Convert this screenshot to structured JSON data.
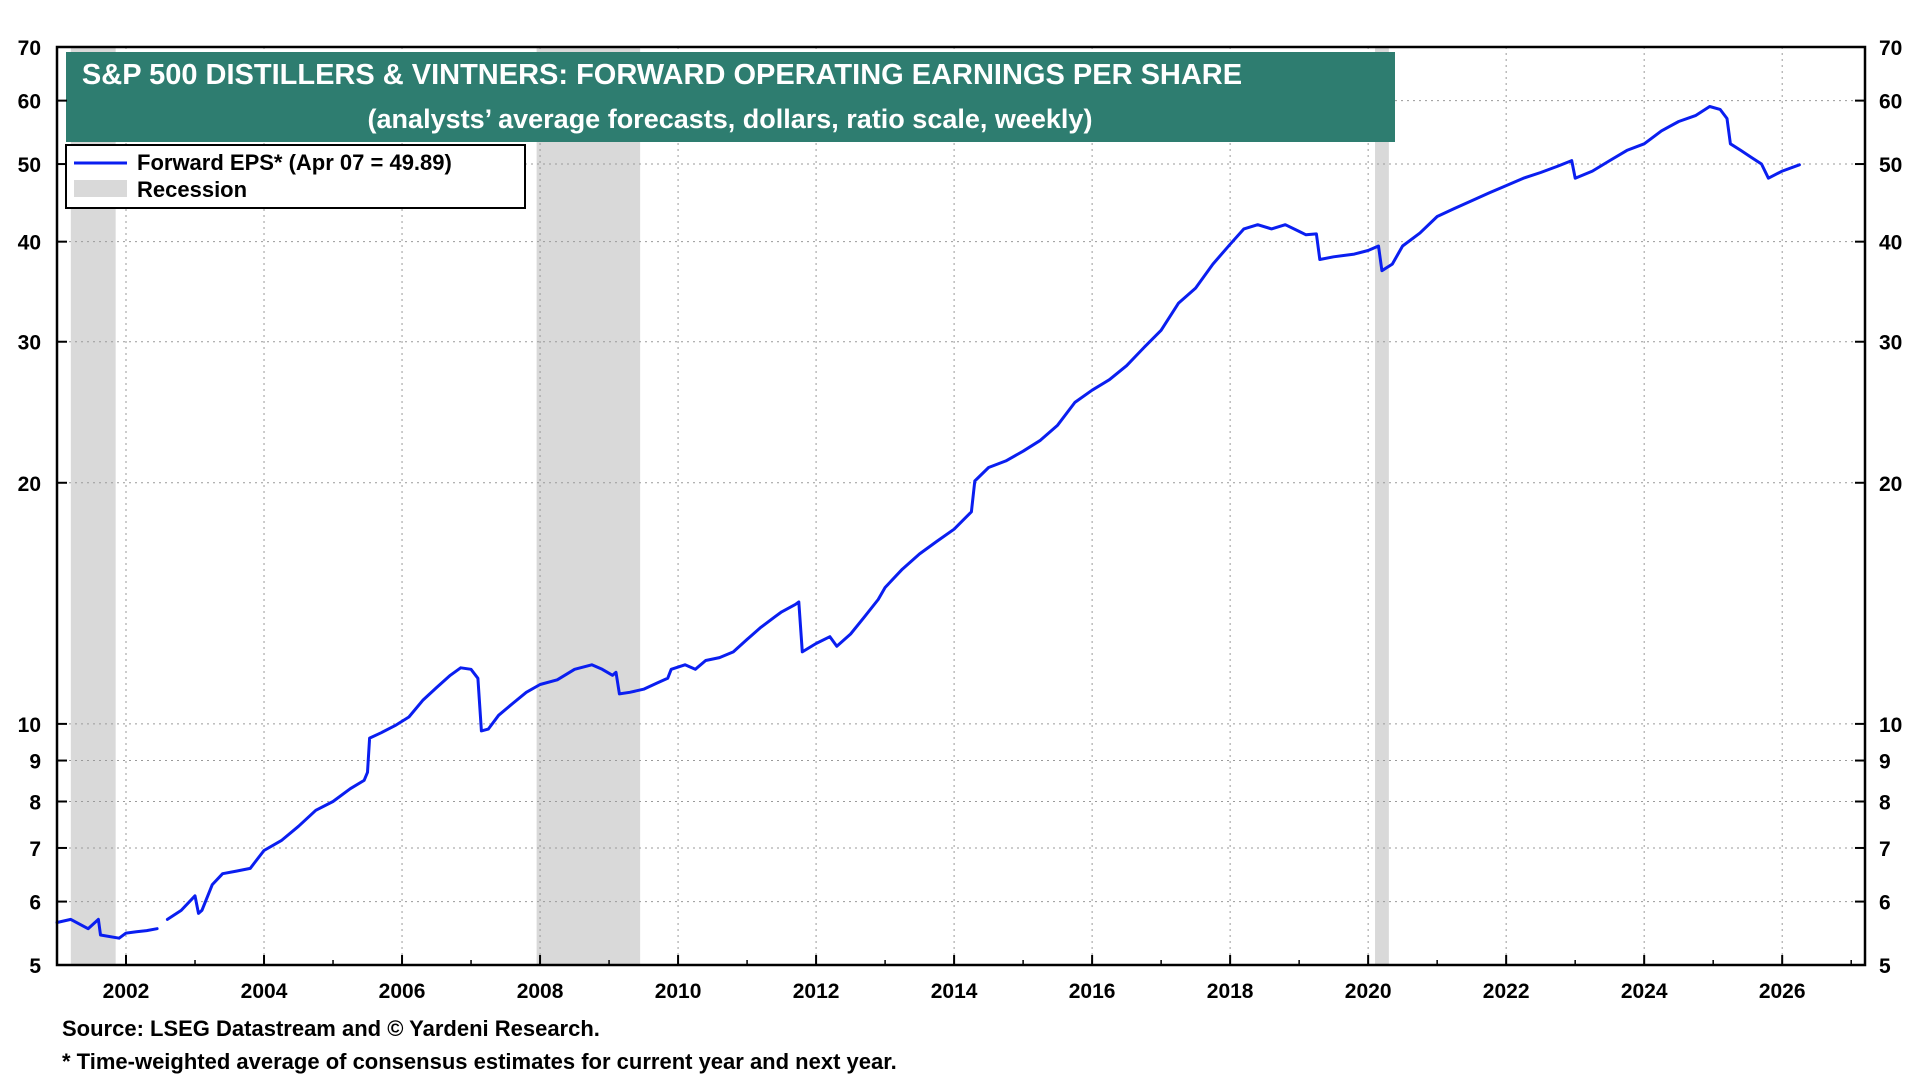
{
  "colors": {
    "line": "#0a1ef0",
    "recession": "#d9d9d9",
    "title_bg": "#2e7d70",
    "grid": "#9a9a9a"
  },
  "footnotes": {
    "source": "Source: LSEG Datastream and © Yardeni Research.",
    "note": "* Time-weighted average of consensus estimates for current year and next year."
  },
  "chart_data": {
    "type": "line",
    "title": "S&P 500 DISTILLERS & VINTNERS: FORWARD OPERATING EARNINGS PER SHARE",
    "subtitle": "(analysts’ average forecasts, dollars, ratio scale, weekly)",
    "xlabel": "",
    "ylabel": "",
    "y_scale": "log",
    "xlim": [
      2001.0,
      2027.2
    ],
    "ylim": [
      5,
      70
    ],
    "x_ticks": [
      2002,
      2004,
      2006,
      2008,
      2010,
      2012,
      2014,
      2016,
      2018,
      2020,
      2022,
      2024,
      2026
    ],
    "x_tick_labels": [
      "2002",
      "2004",
      "2006",
      "2008",
      "2010",
      "2012",
      "2014",
      "2016",
      "2018",
      "2020",
      "2022",
      "2024",
      "2026"
    ],
    "y_ticks": [
      5,
      6,
      7,
      8,
      9,
      10,
      20,
      30,
      40,
      50,
      60,
      70
    ],
    "y_tick_labels": [
      "5",
      "6",
      "7",
      "8",
      "9",
      "10",
      "20",
      "30",
      "40",
      "50",
      "60",
      "70"
    ],
    "grid": true,
    "legend_position": "top-left",
    "legend": [
      {
        "label": "Forward EPS* (Apr 07 = 49.89)",
        "kind": "line"
      },
      {
        "label": "Recession",
        "kind": "band"
      }
    ],
    "recessions": [
      [
        2001.2,
        2001.85
      ],
      [
        2007.95,
        2009.45
      ],
      [
        2020.1,
        2020.3
      ]
    ],
    "series": [
      {
        "name": "Forward EPS",
        "segments": [
          {
            "x": [
              2001.0,
              2001.2,
              2001.45,
              2001.6,
              2001.63,
              2001.9,
              2002.0,
              2002.15,
              2002.3,
              2002.45
            ],
            "y": [
              5.65,
              5.7,
              5.55,
              5.7,
              5.45,
              5.4,
              5.48,
              5.5,
              5.52,
              5.55
            ]
          },
          {
            "x": [
              2002.6,
              2002.8,
              2003.0,
              2003.05,
              2003.1,
              2003.25,
              2003.4,
              2003.6,
              2003.8,
              2004.0,
              2004.25,
              2004.5,
              2004.75,
              2005.0,
              2005.25,
              2005.45,
              2005.5,
              2005.53,
              2005.7,
              2005.9,
              2006.1,
              2006.3,
              2006.5,
              2006.7,
              2006.85,
              2007.0,
              2007.1,
              2007.15,
              2007.25,
              2007.4,
              2007.6,
              2007.8,
              2008.0,
              2008.25,
              2008.5,
              2008.75,
              2008.9,
              2009.05,
              2009.1,
              2009.15,
              2009.3,
              2009.5,
              2009.7,
              2009.85,
              2009.9,
              2010.1,
              2010.25,
              2010.4,
              2010.6,
              2010.8,
              2011.0,
              2011.2,
              2011.4,
              2011.5,
              2011.7,
              2011.75,
              2011.8,
              2012.0,
              2012.2,
              2012.3,
              2012.5,
              2012.7,
              2012.9,
              2013.0,
              2013.25,
              2013.5,
              2013.75,
              2014.0,
              2014.25,
              2014.3,
              2014.5,
              2014.75,
              2015.0,
              2015.25,
              2015.5,
              2015.75,
              2016.0,
              2016.25,
              2016.5,
              2016.75,
              2017.0,
              2017.25,
              2017.5,
              2017.75,
              2018.0,
              2018.2,
              2018.4,
              2018.6,
              2018.8,
              2019.0,
              2019.1,
              2019.25,
              2019.3,
              2019.5,
              2019.8,
              2020.0,
              2020.15,
              2020.2,
              2020.35,
              2020.5,
              2020.75,
              2021.0,
              2021.25,
              2021.5,
              2021.75,
              2022.0,
              2022.25,
              2022.5,
              2022.75,
              2022.95,
              2023.0,
              2023.25,
              2023.5,
              2023.75,
              2024.0,
              2024.25,
              2024.5,
              2024.75,
              2024.95,
              2025.1,
              2025.2,
              2025.25,
              2025.4,
              2025.55,
              2025.7,
              2025.8,
              2026.0,
              2026.25
            ],
            "y": [
              5.7,
              5.85,
              6.1,
              5.8,
              5.85,
              6.3,
              6.5,
              6.55,
              6.6,
              6.95,
              7.15,
              7.45,
              7.8,
              8.0,
              8.3,
              8.5,
              8.7,
              9.6,
              9.75,
              9.95,
              10.2,
              10.7,
              11.1,
              11.5,
              11.75,
              11.7,
              11.4,
              9.8,
              9.85,
              10.25,
              10.6,
              10.95,
              11.2,
              11.35,
              11.7,
              11.85,
              11.7,
              11.5,
              11.6,
              10.9,
              10.95,
              11.05,
              11.25,
              11.4,
              11.7,
              11.85,
              11.7,
              12.0,
              12.1,
              12.3,
              12.75,
              13.2,
              13.6,
              13.8,
              14.1,
              14.2,
              12.3,
              12.6,
              12.85,
              12.5,
              12.95,
              13.6,
              14.3,
              14.8,
              15.6,
              16.3,
              16.9,
              17.5,
              18.4,
              20.1,
              20.9,
              21.3,
              21.9,
              22.6,
              23.6,
              25.2,
              26.1,
              26.9,
              28.0,
              29.5,
              31.0,
              33.5,
              35.0,
              37.5,
              39.7,
              41.5,
              42.0,
              41.5,
              42.0,
              41.2,
              40.8,
              40.9,
              38.0,
              38.3,
              38.6,
              39.0,
              39.5,
              36.8,
              37.5,
              39.5,
              41.0,
              43.0,
              44.0,
              45.0,
              46.0,
              47.0,
              48.0,
              48.8,
              49.7,
              50.5,
              48.0,
              49.0,
              50.5,
              52.0,
              53.0,
              55.0,
              56.5,
              57.5,
              59.0,
              58.5,
              57.0,
              53.0,
              52.0,
              51.0,
              50.0,
              48.0,
              49.0,
              49.89
            ]
          }
        ]
      }
    ]
  }
}
